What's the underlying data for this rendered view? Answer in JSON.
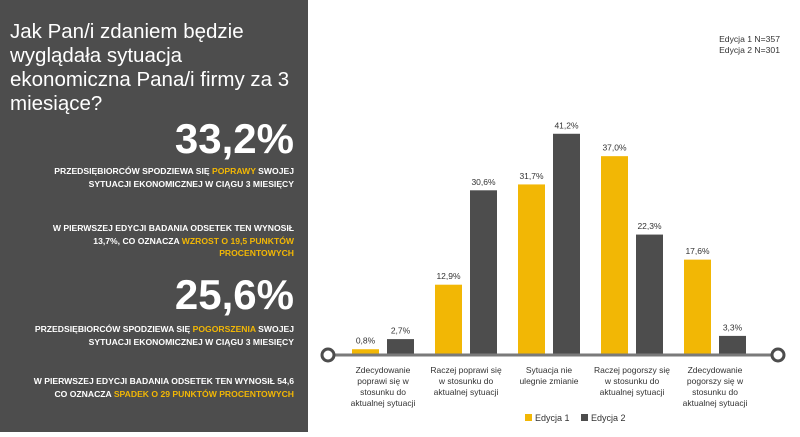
{
  "question": "Jak Pan/i zdaniem będzie wyglądała sytuacja ekonomiczna Pana/i firmy za 3 miesiące?",
  "stat1": {
    "value": "33,2%",
    "line_a_pre": "Przedsiębiorców spodziewa się ",
    "line_a_hl": "poprawy",
    "line_a_post": " swojej sytuacji ekonomicznej w ciągu 3 miesięcy",
    "line_b_pre": "W pierwszej edycji badania odsetek ten wynosił 13,7%, co oznacza ",
    "line_b_hl": "wzrost o 19,5 punktów procentowych"
  },
  "stat2": {
    "value": "25,6%",
    "line_a_pre": "Przedsiębiorców spodziewa się ",
    "line_a_hl": "pogorszenia",
    "line_a_post": " swojej sytuacji ekonomicznej w ciągu 3 miesięcy",
    "line_b_pre": "W pierwszej edycji badania odsetek ten wynosił 54,6 co oznacza ",
    "line_b_hl": "spadek o 29 punktów procentowych"
  },
  "edition_note": {
    "line1": "Edycja 1 N=357",
    "line2": "Edycja 2 N=301"
  },
  "colors": {
    "panel": "#4d4d4d",
    "highlight": "#f2b705",
    "edition1": "#f2b705",
    "edition2": "#4d4d4d"
  },
  "chart_data": {
    "type": "bar",
    "categories": [
      [
        "Zdecydowanie",
        "poprawi się w",
        "stosunku do",
        "aktualnej sytuacji"
      ],
      [
        "Raczej poprawi się",
        "w stosunku do",
        "aktualnej sytuacji"
      ],
      [
        "Sytuacja nie",
        "ulegnie zmianie"
      ],
      [
        "Raczej pogorszy się",
        "w stosunku do",
        "aktualnej sytuacji"
      ],
      [
        "Zdecydowanie",
        "pogorszy się w",
        "stosunku do",
        "aktualnej sytuacji"
      ]
    ],
    "series": [
      {
        "name": "Edycja 1",
        "color": "#f2b705",
        "values": [
          0.8,
          12.9,
          31.7,
          37.0,
          17.6
        ],
        "labels": [
          "0,8%",
          "12,9%",
          "31,7%",
          "37,0%",
          "17,6%"
        ]
      },
      {
        "name": "Edycja 2",
        "color": "#4d4d4d",
        "values": [
          2.7,
          30.6,
          41.2,
          22.3,
          3.3
        ],
        "labels": [
          "2,7%",
          "30,6%",
          "41,2%",
          "22,3%",
          "3,3%"
        ]
      }
    ],
    "ylim": [
      0,
      45
    ],
    "legend": "bottom"
  }
}
